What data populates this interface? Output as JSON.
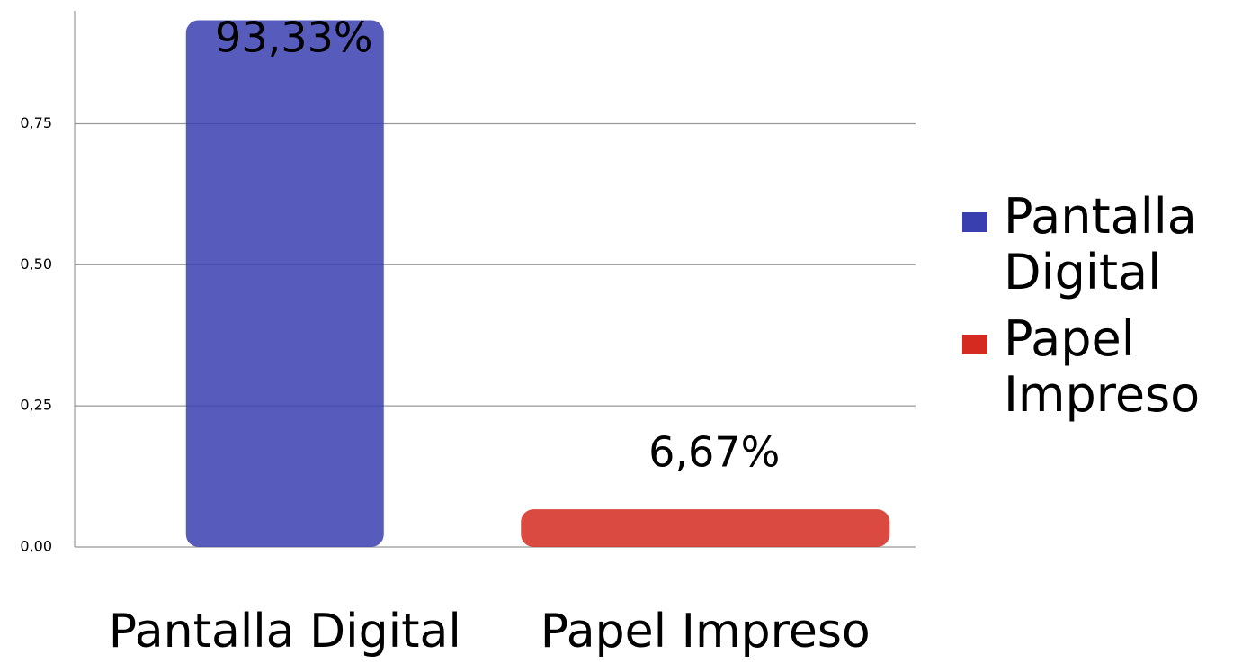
{
  "chart_data": {
    "type": "bar",
    "categories": [
      "Pantalla Digital",
      "Papel Impreso"
    ],
    "values": [
      0.9333,
      0.0667
    ],
    "value_labels": [
      "93,33%",
      "6,67%"
    ],
    "colors": [
      "#3a3fb0",
      "#d42a1f"
    ],
    "ylim": [
      0,
      0.95
    ],
    "yticks": [
      {
        "value": 0,
        "label": "0,00"
      },
      {
        "value": 0.25,
        "label": "0,25"
      },
      {
        "value": 0.5,
        "label": "0,50"
      },
      {
        "value": 0.75,
        "label": "0,75"
      }
    ],
    "grid": true,
    "legend": "right"
  }
}
